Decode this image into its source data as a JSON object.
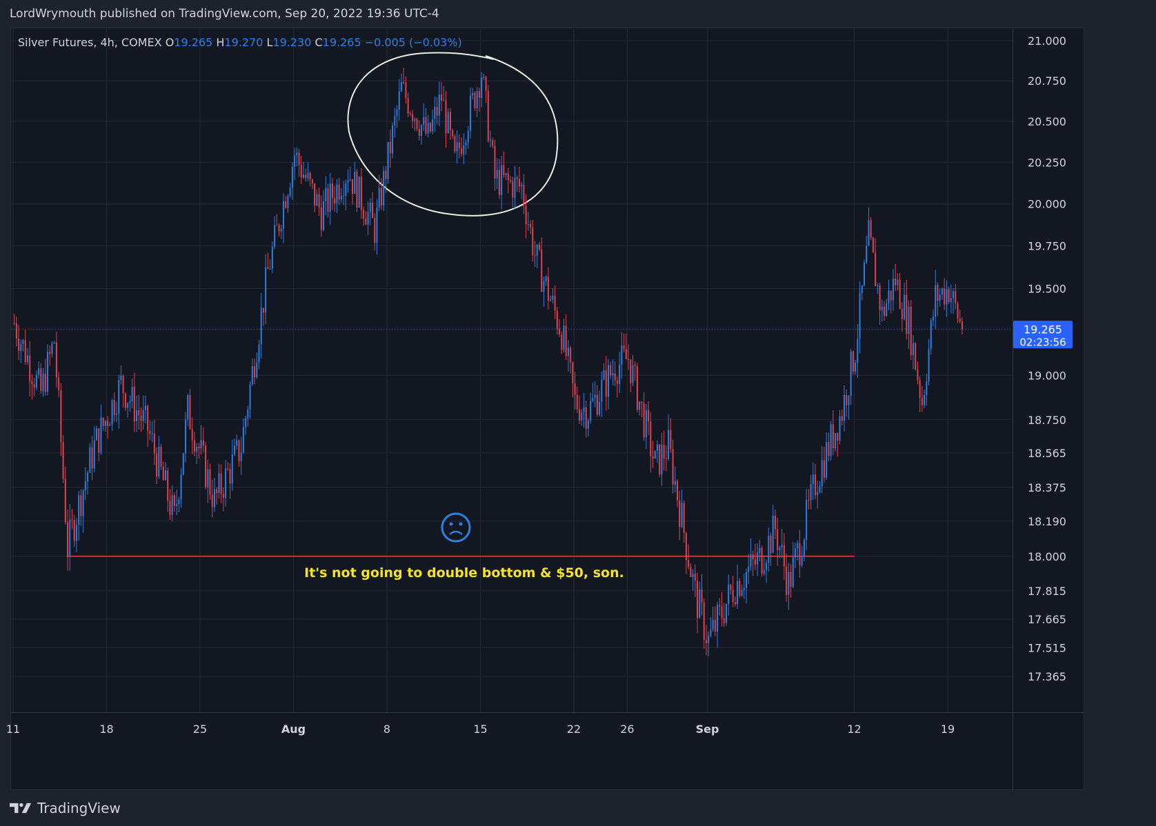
{
  "header": {
    "text": "LordWrymouth published on TradingView.com, Sep 20, 2022 19:36 UTC-4"
  },
  "legend": {
    "symbol": "Silver Futures, 4h, COMEX",
    "o_label": "O",
    "o_value": "19.265",
    "h_label": "H",
    "h_value": "19.270",
    "l_label": "L",
    "l_value": "19.230",
    "c_label": "C",
    "c_value": "19.265",
    "change": "−0.005 (−0.03%)"
  },
  "last_price": {
    "value": "19.265",
    "countdown": "02:23:56"
  },
  "annotation": {
    "text": "It's not going to double bottom & $50, son.",
    "emoji": "☹"
  },
  "footer": {
    "brand": "TradingView"
  },
  "colors": {
    "up": "#2f7fe0",
    "down": "#e0424e",
    "background": "#131722",
    "grid": "#252936",
    "annotation_text": "#f5e42a",
    "support_line": "#e0424e",
    "circle": "#e6f2df",
    "price_label_bg": "#2962ff"
  },
  "chart_data": {
    "type": "candlestick",
    "symbol": "Silver Futures",
    "interval": "4h",
    "exchange": "COMEX",
    "y_axis": {
      "scale": "log",
      "range": [
        17.25,
        21.05
      ],
      "ticks": [
        "21.000",
        "20.750",
        "20.500",
        "20.250",
        "20.000",
        "19.750",
        "19.500",
        "19.000",
        "18.750",
        "18.565",
        "18.375",
        "18.190",
        "18.000",
        "17.815",
        "17.665",
        "17.515",
        "17.365"
      ],
      "tick_values": [
        21.0,
        20.75,
        20.5,
        20.25,
        20.0,
        19.75,
        19.5,
        19.0,
        18.75,
        18.565,
        18.375,
        18.19,
        18.0,
        17.815,
        17.665,
        17.515,
        17.365
      ]
    },
    "x_axis": {
      "ticks": [
        {
          "label": "11",
          "date": "2022-07-11",
          "bold": false
        },
        {
          "label": "18",
          "date": "2022-07-18",
          "bold": false
        },
        {
          "label": "25",
          "date": "2022-07-25",
          "bold": false
        },
        {
          "label": "Aug",
          "date": "2022-08-01",
          "bold": true
        },
        {
          "label": "8",
          "date": "2022-08-08",
          "bold": false
        },
        {
          "label": "15",
          "date": "2022-08-15",
          "bold": false
        },
        {
          "label": "22",
          "date": "2022-08-22",
          "bold": false
        },
        {
          "label": "26",
          "date": "2022-08-26",
          "bold": false
        },
        {
          "label": "Sep",
          "date": "2022-09-01",
          "bold": true
        },
        {
          "label": "12",
          "date": "2022-09-12",
          "bold": false
        },
        {
          "label": "19",
          "date": "2022-09-19",
          "bold": false
        }
      ]
    },
    "grid": true,
    "support_level": 18.0,
    "last_close": 19.265,
    "anchors": [
      {
        "date": "2022-07-11",
        "close": 19.3
      },
      {
        "date": "2022-07-13",
        "close": 18.9
      },
      {
        "date": "2022-07-14",
        "close": 19.2
      },
      {
        "date": "2022-07-15",
        "close": 18.05
      },
      {
        "date": "2022-07-17",
        "close": 18.6
      },
      {
        "date": "2022-07-19",
        "close": 18.95
      },
      {
        "date": "2022-07-21",
        "close": 18.7
      },
      {
        "date": "2022-07-23",
        "close": 18.2
      },
      {
        "date": "2022-07-24",
        "close": 18.8
      },
      {
        "date": "2022-07-26",
        "close": 18.3
      },
      {
        "date": "2022-07-28",
        "close": 18.6
      },
      {
        "date": "2022-07-30",
        "close": 19.6
      },
      {
        "date": "2022-08-01",
        "close": 20.3
      },
      {
        "date": "2022-08-03",
        "close": 19.95
      },
      {
        "date": "2022-08-05",
        "close": 20.2
      },
      {
        "date": "2022-08-07",
        "close": 19.85
      },
      {
        "date": "2022-08-09",
        "close": 20.7
      },
      {
        "date": "2022-08-11",
        "close": 20.4
      },
      {
        "date": "2022-08-12",
        "close": 20.65
      },
      {
        "date": "2022-08-13",
        "close": 20.25
      },
      {
        "date": "2022-08-15",
        "close": 20.8
      },
      {
        "date": "2022-08-16",
        "close": 20.15
      },
      {
        "date": "2022-08-18",
        "close": 20.1
      },
      {
        "date": "2022-08-19",
        "close": 19.7
      },
      {
        "date": "2022-08-21",
        "close": 19.25
      },
      {
        "date": "2022-08-22",
        "close": 18.85
      },
      {
        "date": "2022-08-23",
        "close": 18.8
      },
      {
        "date": "2022-08-25",
        "close": 19.05
      },
      {
        "date": "2022-08-26",
        "close": 19.1
      },
      {
        "date": "2022-08-27",
        "close": 18.8
      },
      {
        "date": "2022-08-28",
        "close": 18.5
      },
      {
        "date": "2022-08-29",
        "close": 18.6
      },
      {
        "date": "2022-08-30",
        "close": 18.2
      },
      {
        "date": "2022-08-31",
        "close": 17.8
      },
      {
        "date": "2022-09-01",
        "close": 17.55
      },
      {
        "date": "2022-09-03",
        "close": 17.85
      },
      {
        "date": "2022-09-05",
        "close": 18.0
      },
      {
        "date": "2022-09-06",
        "close": 18.15
      },
      {
        "date": "2022-09-07",
        "close": 17.85
      },
      {
        "date": "2022-09-08",
        "close": 18.1
      },
      {
        "date": "2022-09-09",
        "close": 18.4
      },
      {
        "date": "2022-09-11",
        "close": 18.8
      },
      {
        "date": "2022-09-12",
        "close": 19.15
      },
      {
        "date": "2022-09-13",
        "close": 19.8
      },
      {
        "date": "2022-09-14",
        "close": 19.35
      },
      {
        "date": "2022-09-15",
        "close": 19.55
      },
      {
        "date": "2022-09-16",
        "close": 19.3
      },
      {
        "date": "2022-09-17",
        "close": 18.85
      },
      {
        "date": "2022-09-18",
        "close": 19.45
      },
      {
        "date": "2022-09-19",
        "close": 19.5
      },
      {
        "date": "2022-09-20",
        "close": 19.265
      }
    ]
  }
}
